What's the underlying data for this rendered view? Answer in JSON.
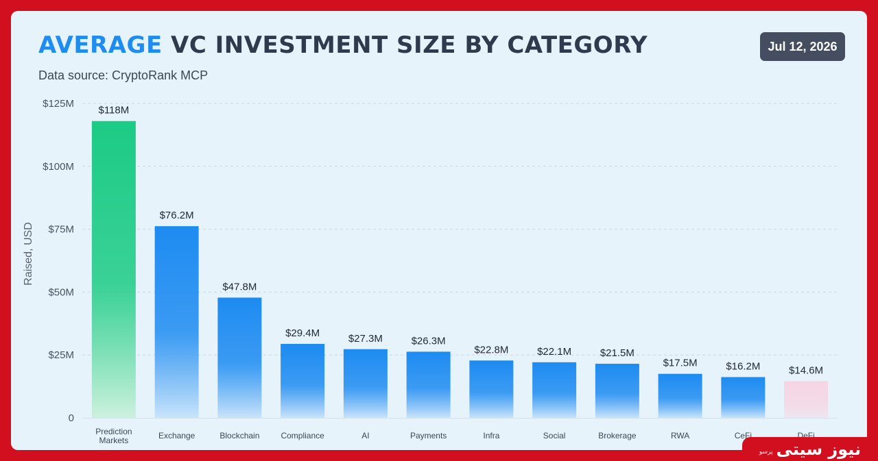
{
  "header": {
    "title_accent": "AVERAGE",
    "title_rest": "VC INVESTMENT SIZE BY CATEGORY",
    "subtitle": "Data source: CryptoRank MCP",
    "date": "Jul 12, 2026"
  },
  "watermark": {
    "name": "نیوز سیتی",
    "tag": "پرسو"
  },
  "colors": {
    "card_bg": "#e6f3fb",
    "frame": "#d10f1f",
    "title_accent": "#1f8cf0",
    "title": "#2f3b4c",
    "bar_blue": "#1f8cf0",
    "bar_green": "#1fcb86",
    "bar_pink": "#f5dce7"
  },
  "chart_data": {
    "type": "bar",
    "title": "AVERAGE VC INVESTMENT SIZE BY CATEGORY",
    "ylabel": "Raised, USD",
    "xlabel": "",
    "ylim": [
      0,
      125
    ],
    "yticks": [
      0,
      25,
      50,
      75,
      100,
      125
    ],
    "ytick_labels": [
      "0",
      "$25M",
      "$50M",
      "$75M",
      "$100M",
      "$125M"
    ],
    "grid": true,
    "categories": [
      "Prediction Markets",
      "Exchange",
      "Blockchain",
      "Compliance",
      "AI",
      "Payments",
      "Infra",
      "Social",
      "Brokerage",
      "RWA",
      "CeFi",
      "DeFi"
    ],
    "values": [
      118,
      76.2,
      47.8,
      29.4,
      27.3,
      26.3,
      22.8,
      22.1,
      21.5,
      17.5,
      16.2,
      14.6
    ],
    "value_labels": [
      "$118M",
      "$76.2M",
      "$47.8M",
      "$29.4M",
      "$27.3M",
      "$26.3M",
      "$22.8M",
      "$22.1M",
      "$21.5M",
      "$17.5M",
      "$16.2M",
      "$14.6M"
    ],
    "bar_colors": [
      "green",
      "blue",
      "blue",
      "blue",
      "blue",
      "blue",
      "blue",
      "blue",
      "blue",
      "blue",
      "blue",
      "pink"
    ]
  }
}
